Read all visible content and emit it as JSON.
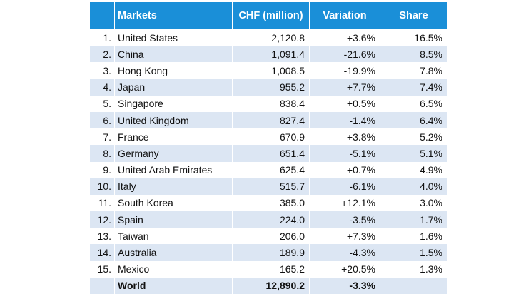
{
  "header": {
    "rank": "",
    "market": "Markets",
    "chf": "CHF (million)",
    "variation": "Variation",
    "share": "Share"
  },
  "rows": [
    {
      "rank": "1.",
      "market": "United States",
      "chf": "2,120.8",
      "variation": "+3.6%",
      "share": "16.5%"
    },
    {
      "rank": "2.",
      "market": "China",
      "chf": "1,091.4",
      "variation": "-21.6%",
      "share": "8.5%"
    },
    {
      "rank": "3.",
      "market": "Hong Kong",
      "chf": "1,008.5",
      "variation": "-19.9%",
      "share": "7.8%"
    },
    {
      "rank": "4.",
      "market": "Japan",
      "chf": "955.2",
      "variation": "+7.7%",
      "share": "7.4%"
    },
    {
      "rank": "5.",
      "market": "Singapore",
      "chf": "838.4",
      "variation": "+0.5%",
      "share": "6.5%"
    },
    {
      "rank": "6.",
      "market": "United Kingdom",
      "chf": "827.4",
      "variation": "-1.4%",
      "share": "6.4%"
    },
    {
      "rank": "7.",
      "market": "France",
      "chf": "670.9",
      "variation": "+3.8%",
      "share": "5.2%"
    },
    {
      "rank": "8.",
      "market": "Germany",
      "chf": "651.4",
      "variation": "-5.1%",
      "share": "5.1%"
    },
    {
      "rank": "9.",
      "market": "United Arab Emirates",
      "chf": "625.4",
      "variation": "+0.7%",
      "share": "4.9%"
    },
    {
      "rank": "10.",
      "market": "Italy",
      "chf": "515.7",
      "variation": "-6.1%",
      "share": "4.0%"
    },
    {
      "rank": "11.",
      "market": "South Korea",
      "chf": "385.0",
      "variation": "+12.1%",
      "share": "3.0%"
    },
    {
      "rank": "12.",
      "market": "Spain",
      "chf": "224.0",
      "variation": "-3.5%",
      "share": "1.7%"
    },
    {
      "rank": "13.",
      "market": "Taiwan",
      "chf": "206.0",
      "variation": "+7.3%",
      "share": "1.6%"
    },
    {
      "rank": "14.",
      "market": "Australia",
      "chf": "189.9",
      "variation": "-4.3%",
      "share": "1.5%"
    },
    {
      "rank": "15.",
      "market": "Mexico",
      "chf": "165.2",
      "variation": "+20.5%",
      "share": "1.3%"
    }
  ],
  "total": {
    "market": "World",
    "chf": "12,890.2",
    "variation": "-3.3%",
    "share": ""
  },
  "colors": {
    "header": "#1a8fd8",
    "stripe": "#dce6f3"
  }
}
